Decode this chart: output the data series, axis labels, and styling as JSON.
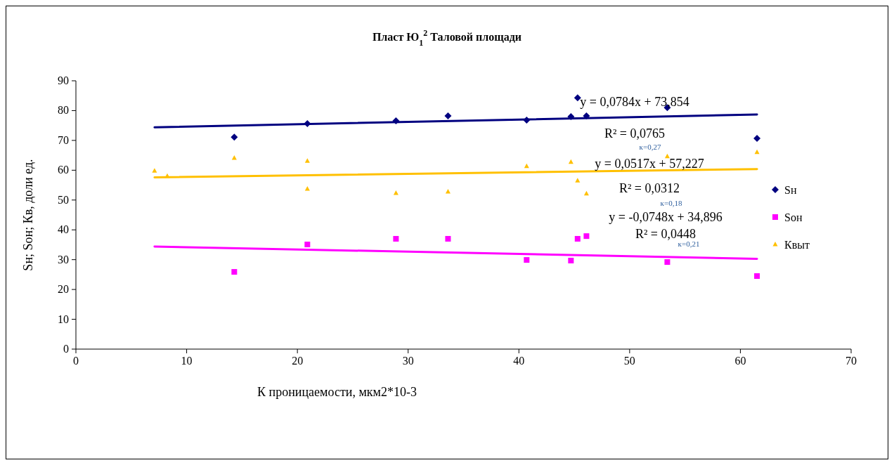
{
  "chart_data": {
    "type": "scatter",
    "title": "Пласт  Ю$_{1}$$^{2}$ Таловой  площади",
    "xlabel": "К проницаемости, мкм2*10-3",
    "ylabel": "Sн; Sон; Кв, доли ед.",
    "xlim": [
      0,
      70
    ],
    "xticks": [
      0,
      10,
      20,
      30,
      40,
      50,
      60,
      70
    ],
    "ylim": [
      0,
      90
    ],
    "yticks": [
      0,
      10,
      20,
      30,
      40,
      50,
      60,
      70,
      80,
      90
    ],
    "grid": false,
    "legend": "right",
    "series": [
      {
        "name": "Sн",
        "color": "#000080",
        "marker": "diamond",
        "x": [
          14.3,
          20.9,
          28.9,
          33.6,
          40.7,
          44.7,
          45.3,
          46.1,
          53.4,
          61.5
        ],
        "values": [
          71.1,
          75.6,
          76.6,
          78.2,
          76.8,
          78,
          84.3,
          78.2,
          81,
          70.7
        ]
      },
      {
        "name": "Sон",
        "color": "#ff00ff",
        "marker": "square",
        "x": [
          14.3,
          20.9,
          28.9,
          33.6,
          40.7,
          44.7,
          45.3,
          46.1,
          53.4,
          61.5
        ],
        "values": [
          25.9,
          35.1,
          37,
          37,
          29.9,
          29.7,
          37,
          37.9,
          29.2,
          24.5
        ]
      },
      {
        "name": "Квыт",
        "color": "#ffc000",
        "marker": "triangle",
        "x": [
          7.1,
          8.25,
          14.3,
          20.9,
          20.9,
          28.9,
          33.6,
          40.7,
          44.7,
          45.3,
          46.1,
          53.4,
          61.5
        ],
        "values": [
          59.8,
          58,
          64.1,
          63.1,
          53.7,
          52.3,
          52.8,
          61.3,
          62.7,
          56.5,
          52.1,
          64.6,
          66
        ]
      },
      {
        "type": "line",
        "color": "#000080",
        "x": [
          7.1,
          61.5
        ],
        "values": [
          74.4,
          78.7
        ]
      },
      {
        "type": "line",
        "color": "#ffc000",
        "x": [
          7.1,
          61.5
        ],
        "values": [
          57.6,
          60.4
        ]
      },
      {
        "type": "line",
        "color": "#ff00ff",
        "x": [
          7.1,
          61.5
        ],
        "values": [
          34.4,
          30.3
        ]
      }
    ],
    "annotations": [
      "y = 0,0784x + 73,854",
      "R² = 0,0765",
      "к=0,27",
      "y = 0,0517x + 57,227",
      "R² = 0,0312",
      "к=0,18",
      "y = -0,0748x + 34,896",
      "R² = 0,0448",
      "к=0,21"
    ]
  }
}
